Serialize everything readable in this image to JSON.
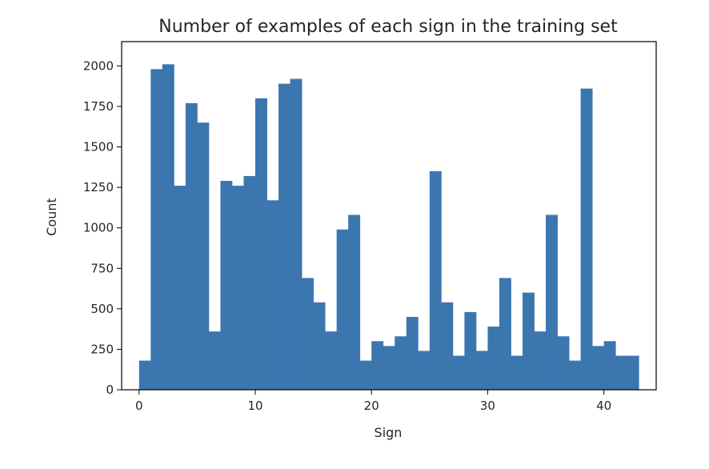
{
  "chart_data": {
    "type": "bar",
    "title": "Number of examples of each sign in the training set",
    "xlabel": "Sign",
    "ylabel": "Count",
    "bin_edges_start": 0,
    "bin_width": 1,
    "values": [
      180,
      1980,
      2010,
      1260,
      1770,
      1650,
      360,
      1290,
      1260,
      1320,
      1800,
      1170,
      1890,
      1920,
      690,
      540,
      360,
      990,
      1080,
      180,
      300,
      270,
      330,
      450,
      240,
      1350,
      540,
      210,
      480,
      240,
      390,
      690,
      210,
      600,
      360,
      1080,
      330,
      180,
      1860,
      270,
      300,
      210,
      210
    ],
    "xlim": [
      -1.5,
      44.5
    ],
    "ylim": [
      0,
      2150
    ],
    "xticks": [
      0,
      10,
      20,
      30,
      40
    ],
    "yticks": [
      0,
      250,
      500,
      750,
      1000,
      1250,
      1500,
      1750,
      2000
    ],
    "bar_color": "#3c76af",
    "grid": false,
    "legend": "none"
  }
}
